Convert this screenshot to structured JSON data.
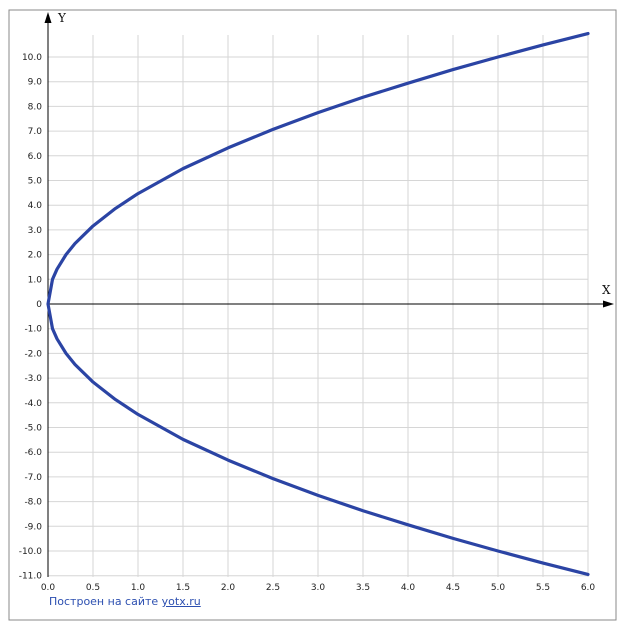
{
  "chart_data": {
    "type": "line",
    "title": "",
    "xlabel": "X",
    "ylabel": "Y",
    "xlim": [
      0,
      6
    ],
    "ylim": [
      -11,
      11
    ],
    "grid": true,
    "x_ticks": [
      0,
      0.5,
      1,
      1.5,
      2,
      2.5,
      3,
      3.5,
      4,
      4.5,
      5,
      5.5,
      6
    ],
    "x_tick_labels": [
      "0.0",
      "0.5",
      "1.0",
      "1.5",
      "2.0",
      "2.5",
      "3.0",
      "3.5",
      "4.0",
      "4.5",
      "5.0",
      "5.5",
      "6.0"
    ],
    "y_ticks": [
      10,
      9,
      8,
      7,
      6,
      5,
      4,
      3,
      2,
      1,
      0,
      -1,
      -2,
      -3,
      -4,
      -5,
      -6,
      -7,
      -8,
      -9,
      -10,
      -11
    ],
    "y_tick_labels": [
      "10.0",
      "9.0",
      "8.0",
      "7.0",
      "6.0",
      "5.0",
      "4.0",
      "3.0",
      "2.0",
      "1.0",
      "0",
      "-1.0",
      "-2.0",
      "-3.0",
      "-4.0",
      "-5.0",
      "-6.0",
      "-7.0",
      "-8.0",
      "-9.0",
      "-10.0",
      "-11.0"
    ],
    "series": [
      {
        "color": "#2b44a4",
        "x": [
          0,
          0.05,
          0.1,
          0.2,
          0.3,
          0.5,
          0.75,
          1,
          1.5,
          2,
          2.5,
          3,
          3.5,
          4,
          4.5,
          5,
          5.5,
          6
        ],
        "y_upper": [
          0,
          1.0,
          1.41,
          2.0,
          2.45,
          3.16,
          3.87,
          4.47,
          5.48,
          6.32,
          7.07,
          7.75,
          8.37,
          8.94,
          9.49,
          10.0,
          10.49,
          10.95
        ],
        "y_lower": [
          0,
          -1.0,
          -1.41,
          -2.0,
          -2.45,
          -3.16,
          -3.87,
          -4.47,
          -5.48,
          -6.32,
          -7.07,
          -7.75,
          -8.37,
          -8.94,
          -9.49,
          -10.0,
          -10.49,
          -10.95
        ]
      }
    ]
  },
  "credit": {
    "text": "Построен на сайте",
    "link": "yotx.ru"
  }
}
